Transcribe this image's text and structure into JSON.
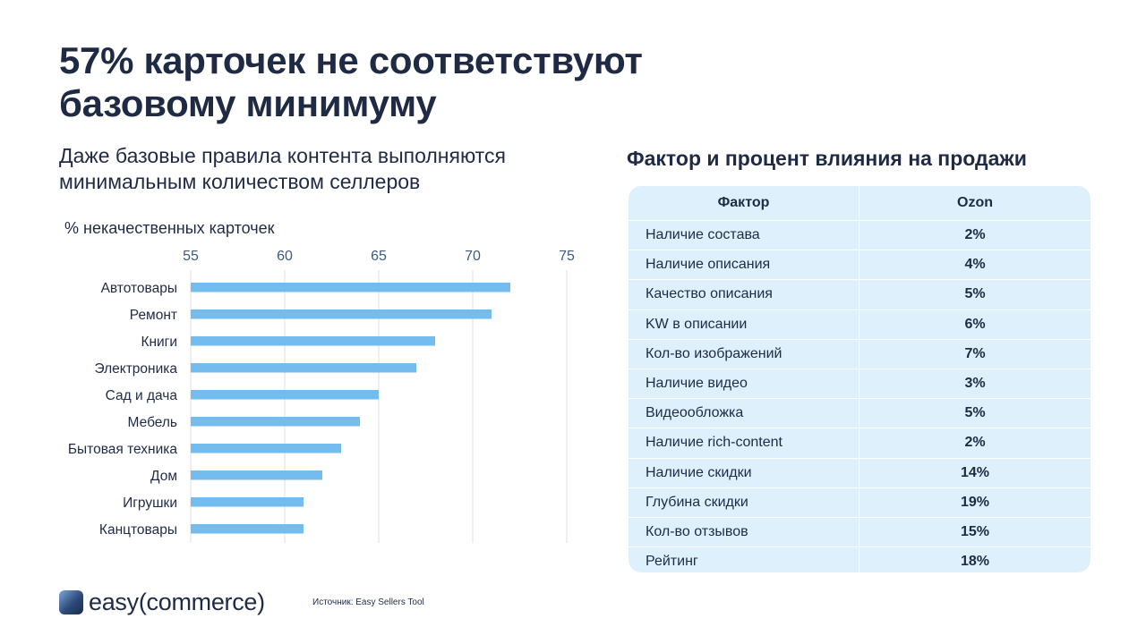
{
  "title": "57% карточек не соответствуют базовому минимуму",
  "subtitle": "Даже базовые правила контента выполняются минимальным количеством селлеров",
  "chart_data": {
    "type": "bar",
    "orientation": "horizontal",
    "title": "% некачественных карточек",
    "categories": [
      "Автотовары",
      "Ремонт",
      "Книги",
      "Электроника",
      "Сад и дача",
      "Мебель",
      "Бытовая техника",
      "Дом",
      "Игрушки",
      "Канцтовары"
    ],
    "values": [
      72,
      71,
      68,
      67,
      65,
      64,
      63,
      62,
      61,
      61
    ],
    "xlim": [
      55,
      75
    ],
    "xticks": [
      55,
      60,
      65,
      70,
      75
    ],
    "axis_position": "top",
    "grid": true,
    "bar_color": "#74bcee"
  },
  "table": {
    "title": "Фактор и процент влияния на продажи",
    "headers": [
      "Фактор",
      "Ozon"
    ],
    "rows": [
      [
        "Наличие состава",
        "2%"
      ],
      [
        "Наличие описания",
        "4%"
      ],
      [
        "Качество описания",
        "5%"
      ],
      [
        "KW в описании",
        "6%"
      ],
      [
        "Кол-во изображений",
        "7%"
      ],
      [
        "Наличие видео",
        "3%"
      ],
      [
        "Видеообложка",
        "5%"
      ],
      [
        "Наличие rich-content",
        "2%"
      ],
      [
        "Наличие скидки",
        "14%"
      ],
      [
        "Глубина скидки",
        "19%"
      ],
      [
        "Кол-во отзывов",
        "15%"
      ],
      [
        "Рейтинг",
        "18%"
      ]
    ]
  },
  "footer": {
    "logo_text": "easy(commerce)",
    "source": "Источник: Easy Sellers Tool"
  }
}
